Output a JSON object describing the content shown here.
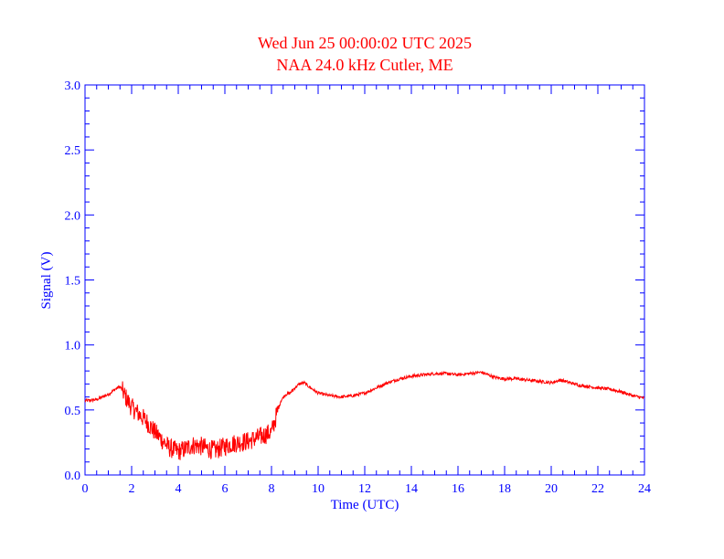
{
  "title_line1": "Wed Jun 25 00:00:02 UTC 2025",
  "title_line2": "NAA 24.0 kHz Cutler, ME",
  "colors": {
    "title": "#ff0000",
    "axes": "#0000ff",
    "series": "#ff0000",
    "background": "#ffffff"
  },
  "chart_data": {
    "type": "line",
    "title": "Wed Jun 25 00:00:02 UTC 2025",
    "subtitle": "NAA 24.0 kHz Cutler, ME",
    "xlabel": "Time (UTC)",
    "ylabel": "Signal (V)",
    "xlim": [
      0,
      24
    ],
    "ylim": [
      0,
      3.0
    ],
    "xticks": [
      0,
      2,
      4,
      6,
      8,
      10,
      12,
      14,
      16,
      18,
      20,
      22,
      24
    ],
    "xtick_labels": [
      "0",
      "2",
      "4",
      "6",
      "8",
      "10",
      "12",
      "14",
      "16",
      "18",
      "20",
      "22",
      "24"
    ],
    "yticks": [
      0,
      0.5,
      1.0,
      1.5,
      2.0,
      2.5,
      3.0
    ],
    "ytick_labels": [
      "0.0",
      "0.5",
      "1.0",
      "1.5",
      "2.0",
      "2.5",
      "3.0"
    ],
    "grid": false,
    "series": [
      {
        "x": [
          0,
          0.5,
          1.0,
          1.3,
          1.5,
          1.6,
          1.8,
          2.0,
          2.3,
          2.6,
          3.0,
          3.3,
          3.6,
          4.0,
          4.3,
          4.6,
          5.0,
          5.3,
          5.6,
          6.0,
          6.3,
          6.6,
          7.0,
          7.3,
          7.6,
          8.0,
          8.2,
          8.4,
          8.6,
          8.8,
          9.0,
          9.2,
          9.4,
          9.6,
          10.0,
          10.5,
          11.0,
          11.5,
          12.0,
          12.5,
          13.0,
          13.5,
          14.0,
          14.5,
          15.0,
          15.5,
          16.0,
          16.5,
          17.0,
          17.3,
          17.6,
          18.0,
          18.5,
          19.0,
          19.5,
          20.0,
          20.4,
          20.8,
          21.2,
          21.6,
          22.0,
          22.5,
          23.0,
          23.5,
          24.0
        ],
        "y": [
          0.57,
          0.58,
          0.62,
          0.66,
          0.68,
          0.65,
          0.58,
          0.52,
          0.47,
          0.42,
          0.33,
          0.27,
          0.21,
          0.18,
          0.2,
          0.23,
          0.22,
          0.2,
          0.19,
          0.22,
          0.24,
          0.25,
          0.26,
          0.28,
          0.3,
          0.33,
          0.45,
          0.57,
          0.62,
          0.63,
          0.67,
          0.7,
          0.71,
          0.68,
          0.63,
          0.61,
          0.6,
          0.61,
          0.63,
          0.67,
          0.71,
          0.74,
          0.76,
          0.77,
          0.78,
          0.78,
          0.77,
          0.78,
          0.79,
          0.77,
          0.75,
          0.74,
          0.74,
          0.73,
          0.72,
          0.71,
          0.73,
          0.71,
          0.69,
          0.68,
          0.67,
          0.66,
          0.64,
          0.61,
          0.59
        ]
      }
    ]
  }
}
